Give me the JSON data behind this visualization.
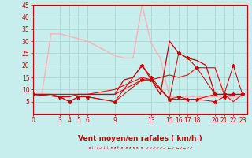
{
  "xlabel": "Vent moyen/en rafales ( km/h )",
  "bg_color": "#c8eded",
  "grid_color": "#aadada",
  "xlim": [
    0,
    23.5
  ],
  "ylim": [
    0,
    45
  ],
  "yticks": [
    5,
    10,
    15,
    20,
    25,
    30,
    35,
    40,
    45
  ],
  "xticks": [
    0,
    3,
    4,
    5,
    6,
    9,
    13,
    15,
    16,
    17,
    18,
    20,
    21,
    22,
    23
  ],
  "line_pink_x": [
    0,
    1,
    2,
    3,
    4,
    5,
    6,
    7,
    8,
    9,
    10,
    11,
    12,
    13,
    14,
    15,
    16,
    17,
    18,
    19,
    20,
    21,
    22,
    23
  ],
  "line_pink_y": [
    8,
    8,
    33,
    33,
    32,
    31,
    30,
    28,
    26,
    24,
    23,
    23,
    45,
    29,
    23,
    7,
    7,
    7,
    7,
    7,
    7,
    7,
    7,
    7
  ],
  "line_pink_color": "#ffb0b0",
  "line_darkred_x": [
    0,
    1,
    2,
    3,
    4,
    5,
    6,
    7,
    8,
    9,
    10,
    11,
    12,
    13,
    14,
    15,
    16,
    17,
    18,
    19,
    20,
    21,
    22,
    23
  ],
  "line_darkred_y": [
    8,
    8,
    8,
    7,
    7,
    8,
    8,
    8,
    8,
    8,
    14,
    15,
    20,
    14,
    8,
    30,
    25,
    23,
    22,
    20,
    8,
    8,
    8,
    8
  ],
  "line_darkred_color": "#cc0000",
  "line_red1_x": [
    0,
    6,
    9,
    12,
    13,
    15,
    16,
    17,
    18,
    20,
    21,
    22,
    23
  ],
  "line_red1_y": [
    8,
    8,
    8,
    14,
    14,
    6,
    6,
    6,
    6,
    8,
    8,
    8,
    8
  ],
  "line_red2_x": [
    0,
    6,
    9,
    12,
    13,
    15,
    16,
    17,
    18,
    20,
    21,
    22,
    23
  ],
  "line_red2_y": [
    8,
    8,
    10,
    15,
    14,
    16,
    15,
    16,
    19,
    19,
    8,
    5,
    8
  ],
  "line_red_color": "#ff0000",
  "line_star1_x": [
    0,
    3,
    4,
    5,
    6,
    9,
    12,
    13,
    15,
    16,
    17,
    18,
    20,
    21,
    22,
    23
  ],
  "line_star1_y": [
    8,
    7,
    5,
    7,
    7,
    5,
    14,
    14,
    6,
    7,
    6,
    6,
    5,
    7,
    8,
    8
  ],
  "line_star2_x": [
    0,
    3,
    4,
    5,
    6,
    9,
    12,
    13,
    15,
    16,
    17,
    18,
    20,
    21,
    22,
    23
  ],
  "line_star2_y": [
    8,
    7,
    5,
    7,
    7,
    5,
    20,
    15,
    6,
    25,
    23,
    19,
    8,
    8,
    20,
    8
  ],
  "line_star_color": "#cc0000",
  "arrow_text": "↗↓ ↗↙↓↓↗↗↑↗ ↗↗ ↖↖ ↖ ↙↙↙↙↙↙ ←↙ ←↙←↙↙",
  "spine_color": "#cc0000",
  "tick_color": "#cc0000",
  "label_color": "#cc0000",
  "tick_fontsize": 5.5,
  "xlabel_fontsize": 6.5
}
